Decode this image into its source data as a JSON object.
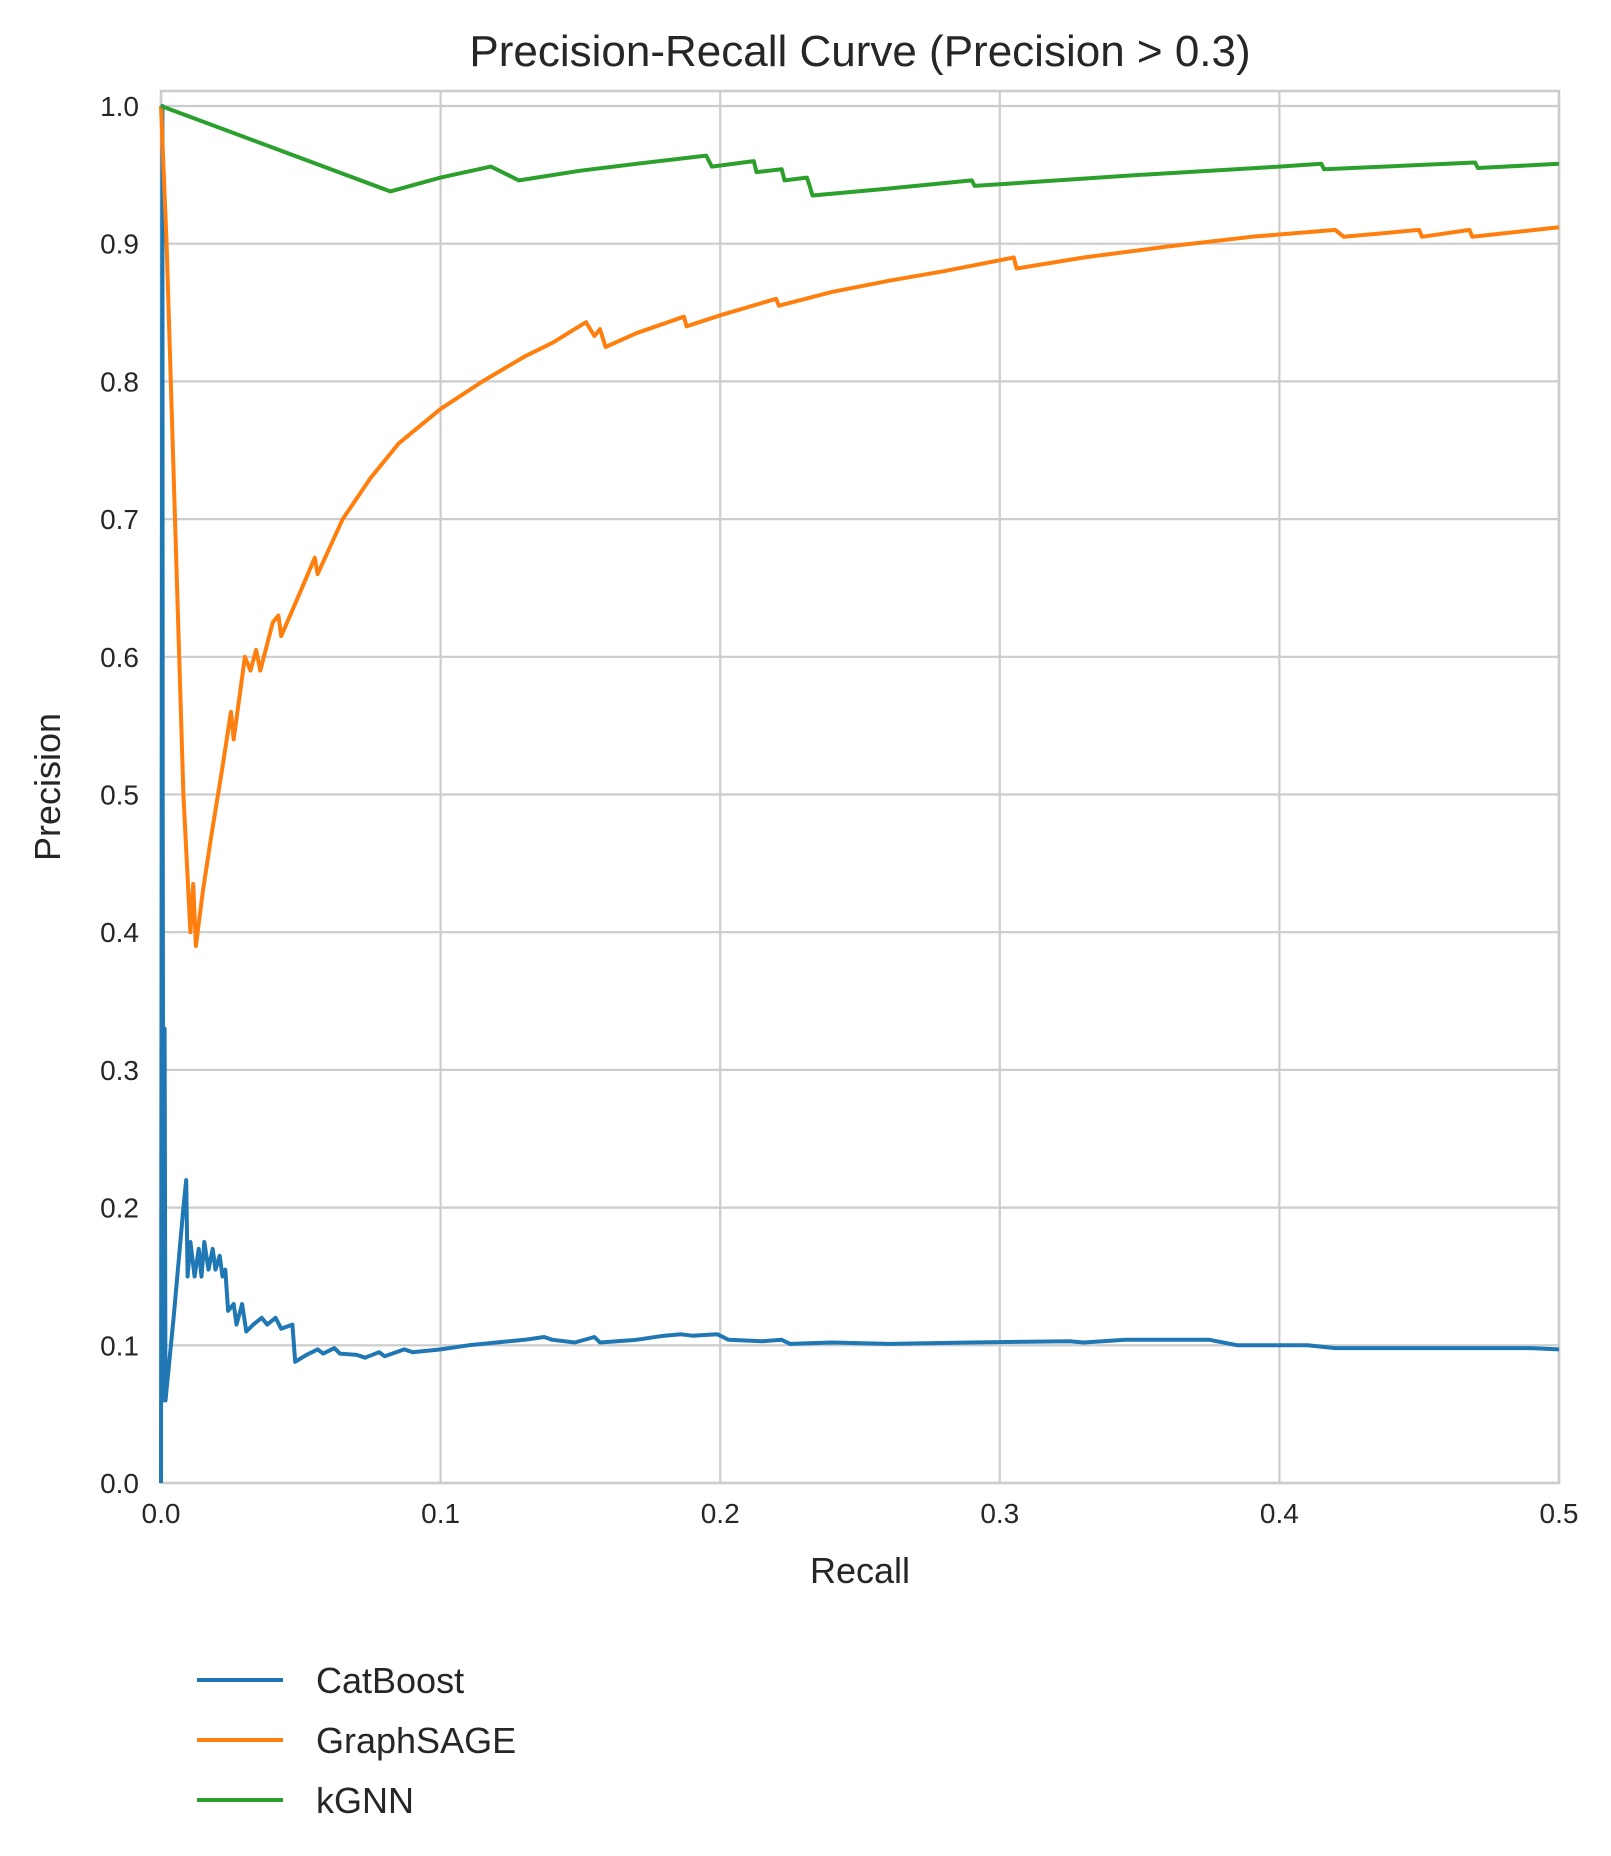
{
  "chart_data": {
    "type": "line",
    "title": "Precision-Recall Curve (Precision > 0.3)",
    "xlabel": "Recall",
    "ylabel": "Precision",
    "xlim": [
      0.0,
      0.5
    ],
    "ylim": [
      0.0,
      1.0
    ],
    "xticks": [
      0.0,
      0.1,
      0.2,
      0.3,
      0.4,
      0.5
    ],
    "xtick_labels": [
      "0.0",
      "0.1",
      "0.2",
      "0.3",
      "0.4",
      "0.5"
    ],
    "yticks": [
      0.0,
      0.1,
      0.2,
      0.3,
      0.4,
      0.5,
      0.6,
      0.7,
      0.8,
      0.9,
      1.0
    ],
    "ytick_labels": [
      "0.0",
      "0.1",
      "0.2",
      "0.3",
      "0.4",
      "0.5",
      "0.6",
      "0.7",
      "0.8",
      "0.9",
      "1.0"
    ],
    "grid": true,
    "legend": "below-left",
    "series": [
      {
        "name": "CatBoost",
        "color": "#1f77b4",
        "points": [
          [
            0.0,
            0.0
          ],
          [
            0.0005,
            1.0
          ],
          [
            0.0006,
            0.5
          ],
          [
            0.0009,
            0.06
          ],
          [
            0.0013,
            0.33
          ],
          [
            0.0016,
            0.06
          ],
          [
            0.0045,
            0.12
          ],
          [
            0.008,
            0.2
          ],
          [
            0.009,
            0.22
          ],
          [
            0.0095,
            0.15
          ],
          [
            0.0105,
            0.175
          ],
          [
            0.012,
            0.15
          ],
          [
            0.0135,
            0.17
          ],
          [
            0.0145,
            0.15
          ],
          [
            0.0155,
            0.175
          ],
          [
            0.017,
            0.155
          ],
          [
            0.0185,
            0.17
          ],
          [
            0.0195,
            0.155
          ],
          [
            0.021,
            0.165
          ],
          [
            0.022,
            0.15
          ],
          [
            0.023,
            0.155
          ],
          [
            0.024,
            0.125
          ],
          [
            0.026,
            0.13
          ],
          [
            0.027,
            0.115
          ],
          [
            0.029,
            0.13
          ],
          [
            0.0305,
            0.11
          ],
          [
            0.033,
            0.115
          ],
          [
            0.036,
            0.12
          ],
          [
            0.038,
            0.115
          ],
          [
            0.041,
            0.12
          ],
          [
            0.043,
            0.112
          ],
          [
            0.047,
            0.115
          ],
          [
            0.048,
            0.088
          ],
          [
            0.052,
            0.093
          ],
          [
            0.056,
            0.097
          ],
          [
            0.058,
            0.094
          ],
          [
            0.062,
            0.098
          ],
          [
            0.064,
            0.094
          ],
          [
            0.07,
            0.093
          ],
          [
            0.073,
            0.091
          ],
          [
            0.078,
            0.095
          ],
          [
            0.08,
            0.092
          ],
          [
            0.087,
            0.097
          ],
          [
            0.09,
            0.095
          ],
          [
            0.1,
            0.097
          ],
          [
            0.11,
            0.1
          ],
          [
            0.12,
            0.102
          ],
          [
            0.13,
            0.104
          ],
          [
            0.137,
            0.106
          ],
          [
            0.14,
            0.104
          ],
          [
            0.148,
            0.102
          ],
          [
            0.155,
            0.106
          ],
          [
            0.157,
            0.102
          ],
          [
            0.17,
            0.104
          ],
          [
            0.18,
            0.107
          ],
          [
            0.186,
            0.108
          ],
          [
            0.19,
            0.107
          ],
          [
            0.199,
            0.108
          ],
          [
            0.203,
            0.104
          ],
          [
            0.215,
            0.103
          ],
          [
            0.222,
            0.104
          ],
          [
            0.225,
            0.101
          ],
          [
            0.24,
            0.102
          ],
          [
            0.26,
            0.101
          ],
          [
            0.29,
            0.102
          ],
          [
            0.325,
            0.103
          ],
          [
            0.33,
            0.102
          ],
          [
            0.345,
            0.104
          ],
          [
            0.375,
            0.104
          ],
          [
            0.385,
            0.1
          ],
          [
            0.41,
            0.1
          ],
          [
            0.42,
            0.098
          ],
          [
            0.45,
            0.098
          ],
          [
            0.49,
            0.098
          ],
          [
            0.5,
            0.097
          ]
        ]
      },
      {
        "name": "GraphSAGE",
        "color": "#ff7f0e",
        "points": [
          [
            0.0,
            1.0
          ],
          [
            0.002,
            0.9
          ],
          [
            0.005,
            0.7
          ],
          [
            0.008,
            0.5
          ],
          [
            0.0105,
            0.4
          ],
          [
            0.0115,
            0.435
          ],
          [
            0.0125,
            0.39
          ],
          [
            0.015,
            0.43
          ],
          [
            0.018,
            0.47
          ],
          [
            0.022,
            0.52
          ],
          [
            0.025,
            0.56
          ],
          [
            0.026,
            0.54
          ],
          [
            0.03,
            0.6
          ],
          [
            0.032,
            0.59
          ],
          [
            0.034,
            0.605
          ],
          [
            0.0355,
            0.59
          ],
          [
            0.04,
            0.625
          ],
          [
            0.042,
            0.63
          ],
          [
            0.043,
            0.615
          ],
          [
            0.05,
            0.648
          ],
          [
            0.055,
            0.672
          ],
          [
            0.056,
            0.66
          ],
          [
            0.065,
            0.7
          ],
          [
            0.075,
            0.73
          ],
          [
            0.085,
            0.755
          ],
          [
            0.1,
            0.78
          ],
          [
            0.115,
            0.8
          ],
          [
            0.13,
            0.818
          ],
          [
            0.14,
            0.828
          ],
          [
            0.152,
            0.843
          ],
          [
            0.155,
            0.833
          ],
          [
            0.157,
            0.838
          ],
          [
            0.159,
            0.825
          ],
          [
            0.17,
            0.835
          ],
          [
            0.187,
            0.847
          ],
          [
            0.188,
            0.84
          ],
          [
            0.2,
            0.848
          ],
          [
            0.22,
            0.86
          ],
          [
            0.221,
            0.855
          ],
          [
            0.24,
            0.865
          ],
          [
            0.26,
            0.873
          ],
          [
            0.28,
            0.88
          ],
          [
            0.305,
            0.89
          ],
          [
            0.306,
            0.882
          ],
          [
            0.33,
            0.89
          ],
          [
            0.36,
            0.898
          ],
          [
            0.39,
            0.905
          ],
          [
            0.42,
            0.91
          ],
          [
            0.423,
            0.905
          ],
          [
            0.45,
            0.91
          ],
          [
            0.451,
            0.905
          ],
          [
            0.468,
            0.91
          ],
          [
            0.469,
            0.905
          ],
          [
            0.5,
            0.912
          ]
        ]
      },
      {
        "name": "kGNN",
        "color": "#2ca02c",
        "points": [
          [
            0.0,
            1.0
          ],
          [
            0.082,
            0.938
          ],
          [
            0.1,
            0.948
          ],
          [
            0.118,
            0.956
          ],
          [
            0.128,
            0.946
          ],
          [
            0.15,
            0.953
          ],
          [
            0.17,
            0.958
          ],
          [
            0.195,
            0.964
          ],
          [
            0.197,
            0.956
          ],
          [
            0.212,
            0.96
          ],
          [
            0.213,
            0.952
          ],
          [
            0.222,
            0.954
          ],
          [
            0.223,
            0.946
          ],
          [
            0.231,
            0.948
          ],
          [
            0.232,
            0.942
          ],
          [
            0.233,
            0.935
          ],
          [
            0.26,
            0.94
          ],
          [
            0.29,
            0.946
          ],
          [
            0.291,
            0.942
          ],
          [
            0.35,
            0.95
          ],
          [
            0.4,
            0.956
          ],
          [
            0.415,
            0.958
          ],
          [
            0.416,
            0.954
          ],
          [
            0.47,
            0.959
          ],
          [
            0.471,
            0.955
          ],
          [
            0.5,
            0.958
          ]
        ]
      }
    ]
  }
}
